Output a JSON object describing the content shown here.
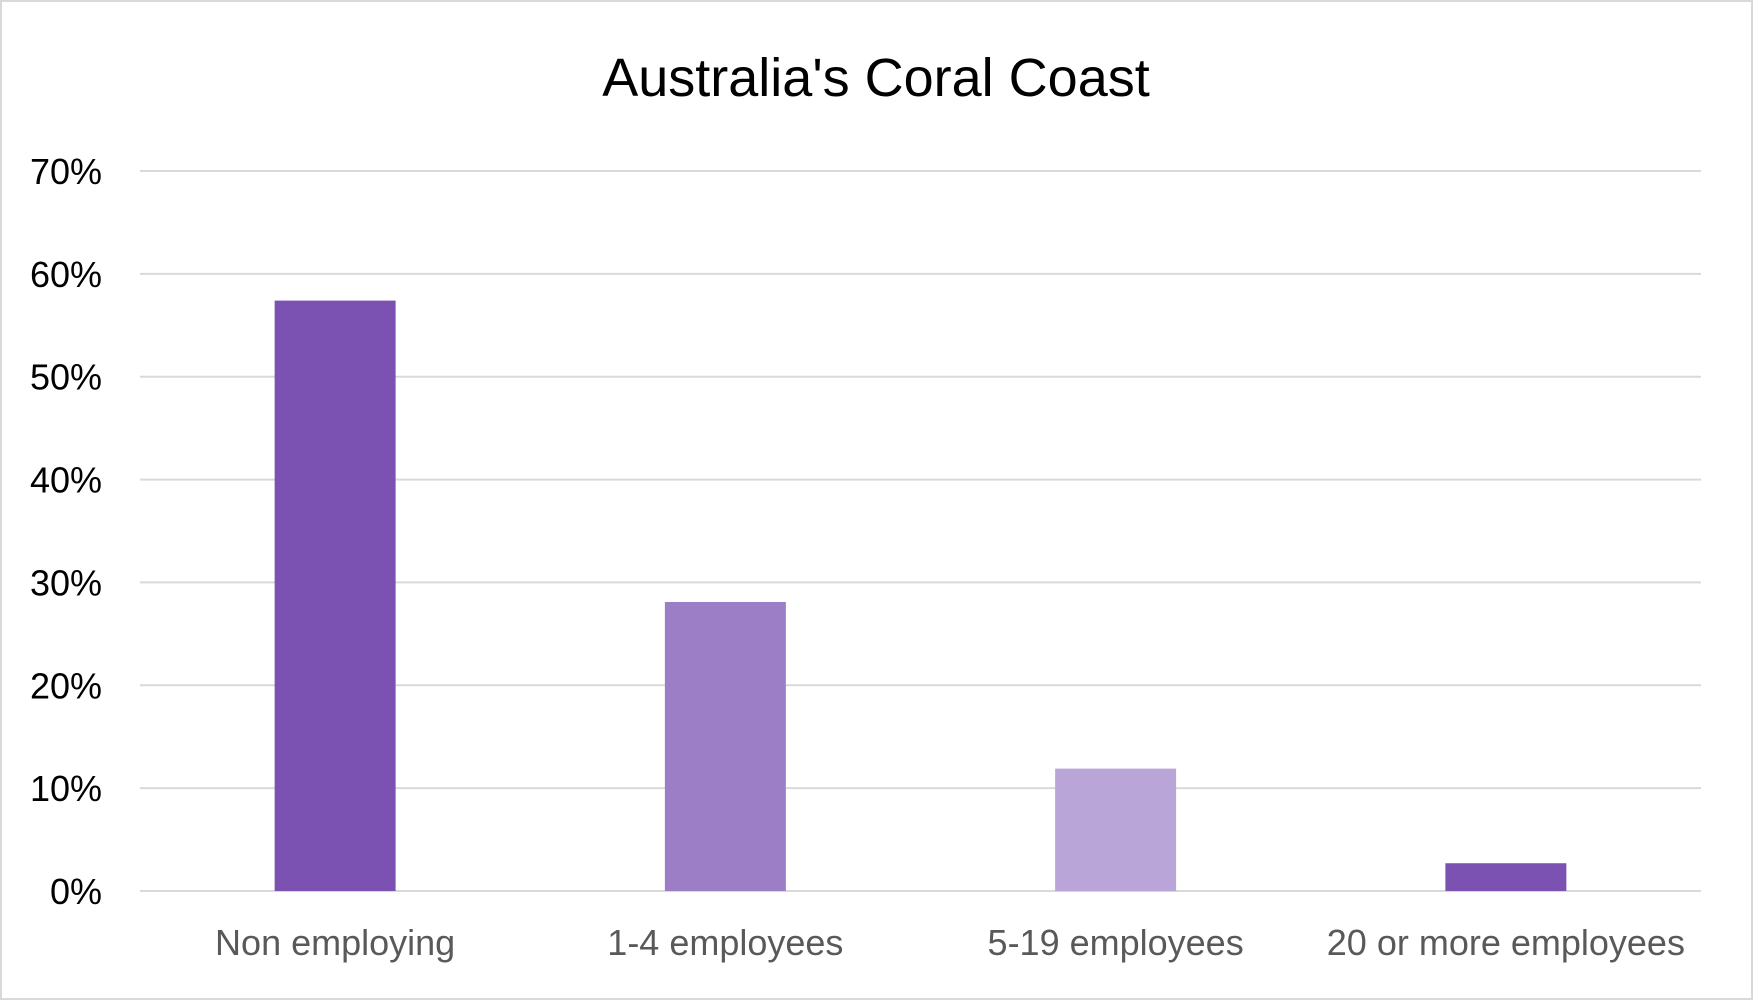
{
  "chart_data": {
    "type": "bar",
    "title": "Australia's Coral Coast",
    "xlabel": "",
    "ylabel": "",
    "categories": [
      "Non employing",
      "1-4 employees",
      "5-19 employees",
      "20 or more employees"
    ],
    "values": [
      57.4,
      28.1,
      11.9,
      2.7
    ],
    "bar_colors": [
      "#7B52B1",
      "#9B7EC6",
      "#B9A5D8",
      "#7B52B1"
    ],
    "ylim": [
      0,
      70
    ],
    "yticks": [
      0,
      10,
      20,
      30,
      40,
      50,
      60,
      70
    ],
    "ytick_labels": [
      "0%",
      "10%",
      "20%",
      "30%",
      "40%",
      "50%",
      "60%",
      "70%"
    ],
    "grid": true,
    "legend": "none"
  }
}
